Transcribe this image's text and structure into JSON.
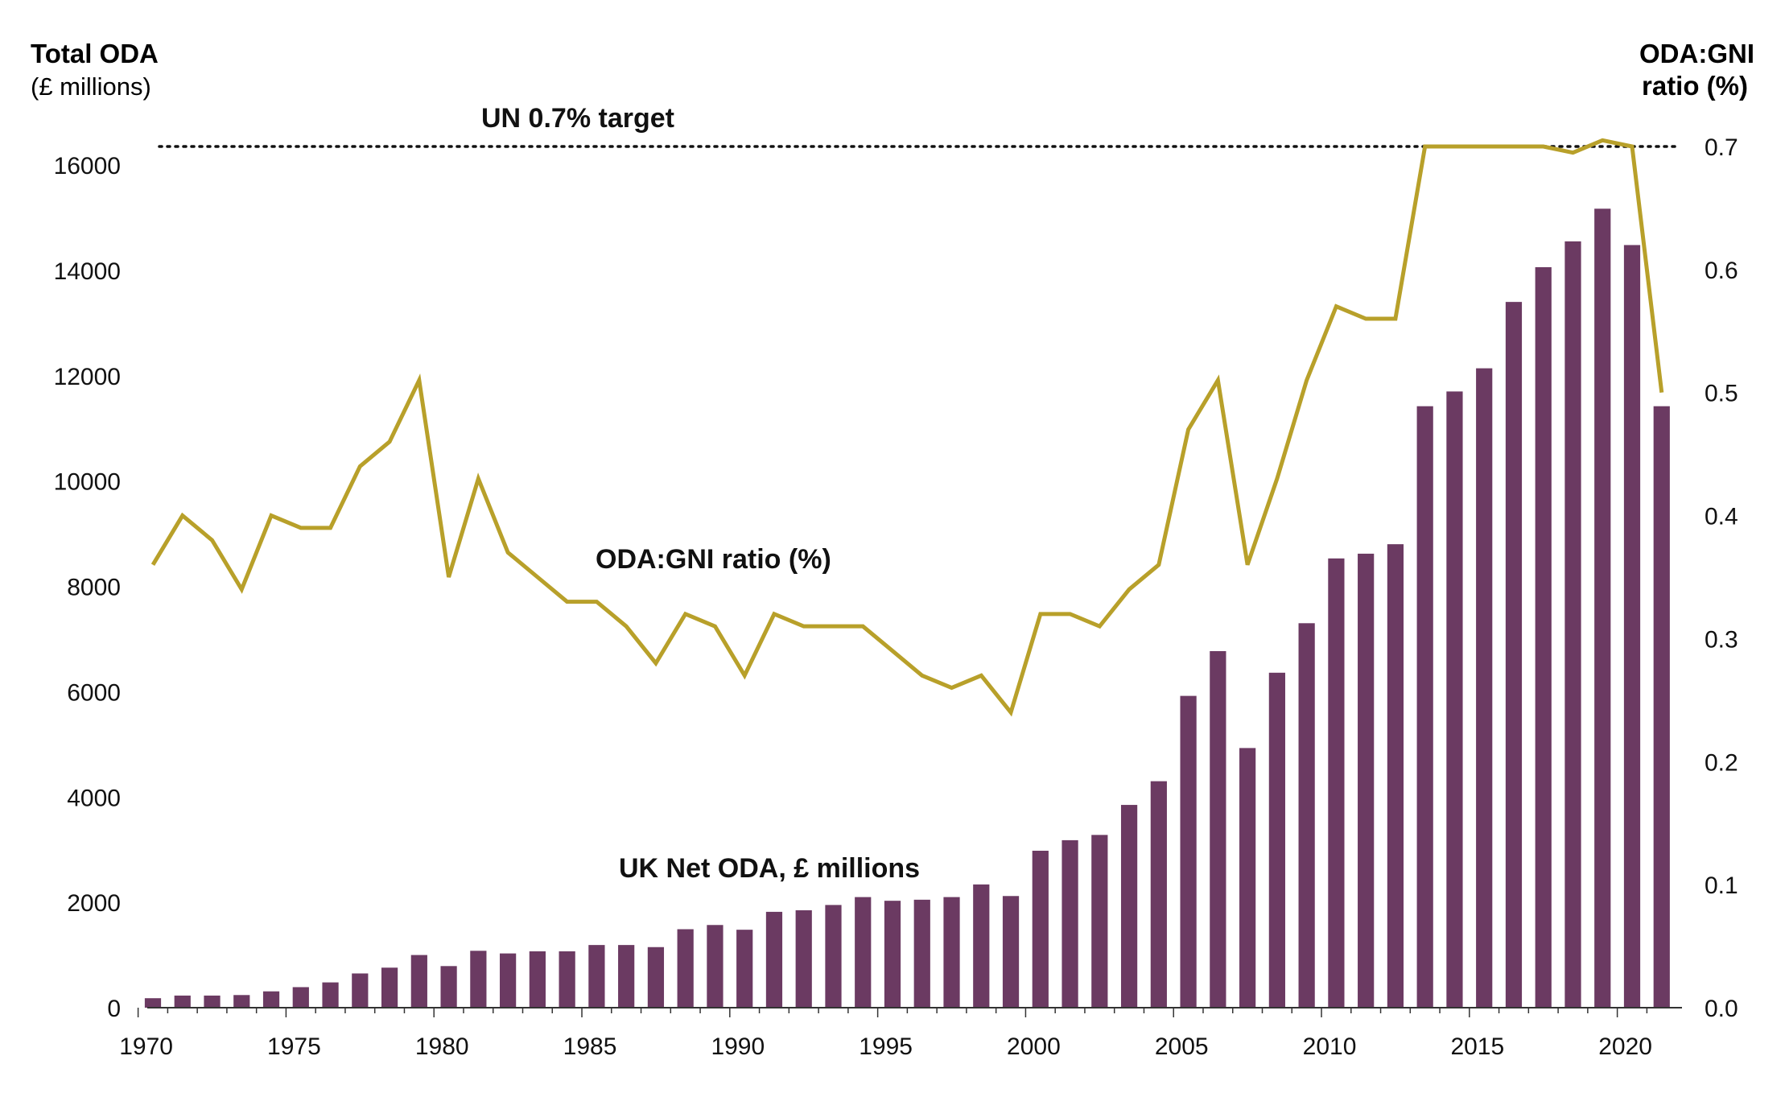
{
  "chart_data": {
    "type": "bar",
    "left_axis": {
      "title": "Total ODA",
      "unit": "(£ millions)",
      "ylim": [
        0,
        16500
      ],
      "ticks": [
        0,
        2000,
        4000,
        6000,
        8000,
        10000,
        12000,
        14000,
        16000
      ]
    },
    "right_axis": {
      "title_line1": "ODA:GNI",
      "title_line2": "ratio (%)",
      "ylim": [
        0,
        0.7
      ],
      "ticks": [
        "0.0",
        "0.1",
        "0.2",
        "0.3",
        "0.4",
        "0.5",
        "0.6",
        "0.7"
      ]
    },
    "xlim": [
      1969.7,
      2022
    ],
    "x_ticks": [
      1970,
      1975,
      1980,
      1985,
      1990,
      1995,
      2000,
      2005,
      2010,
      2015,
      2020
    ],
    "years": [
      1970,
      1971,
      1972,
      1973,
      1974,
      1975,
      1976,
      1977,
      1978,
      1979,
      1980,
      1981,
      1982,
      1983,
      1984,
      1985,
      1986,
      1987,
      1988,
      1989,
      1990,
      1991,
      1992,
      1993,
      1994,
      1995,
      1996,
      1997,
      1998,
      1999,
      2000,
      2001,
      2002,
      2003,
      2004,
      2005,
      2006,
      2007,
      2008,
      2009,
      2010,
      2011,
      2012,
      2013,
      2014,
      2015,
      2016,
      2017,
      2018,
      2019,
      2020,
      2021
    ],
    "series": [
      {
        "name": "UK Net ODA, £ millions",
        "type": "bar",
        "axis": "left",
        "color": "#6b3a62",
        "values": [
          180,
          230,
          230,
          240,
          310,
          390,
          480,
          650,
          760,
          1000,
          790,
          1080,
          1030,
          1070,
          1070,
          1190,
          1190,
          1150,
          1490,
          1570,
          1480,
          1820,
          1850,
          1950,
          2100,
          2030,
          2050,
          2100,
          2340,
          2120,
          2980,
          3180,
          3280,
          3850,
          4300,
          5920,
          6770,
          4930,
          6360,
          7300,
          8530,
          8620,
          8800,
          11420,
          11700,
          12140,
          13400,
          14060,
          14550,
          15170,
          14480,
          11420
        ]
      },
      {
        "name": "ODA:GNI ratio (%)",
        "type": "line",
        "axis": "right",
        "color": "#b8a02a",
        "values": [
          0.36,
          0.4,
          0.38,
          0.34,
          0.4,
          0.39,
          0.39,
          0.44,
          0.46,
          0.51,
          0.35,
          0.43,
          0.37,
          0.35,
          0.33,
          0.33,
          0.31,
          0.28,
          0.32,
          0.31,
          0.27,
          0.32,
          0.31,
          0.31,
          0.31,
          0.29,
          0.27,
          0.26,
          0.27,
          0.24,
          0.32,
          0.32,
          0.31,
          0.34,
          0.36,
          0.47,
          0.51,
          0.36,
          0.43,
          0.51,
          0.57,
          0.56,
          0.56,
          0.7,
          0.7,
          0.7,
          0.7,
          0.7,
          0.695,
          0.705,
          0.7,
          0.5
        ]
      }
    ],
    "target_line": {
      "label": "UN 0.7% target",
      "value": 0.7,
      "style": "dotted",
      "color": "#111111"
    },
    "annotations": {
      "ratio_label": "ODA:GNI ratio (%)",
      "oda_label": "UK Net ODA, £ millions"
    }
  }
}
